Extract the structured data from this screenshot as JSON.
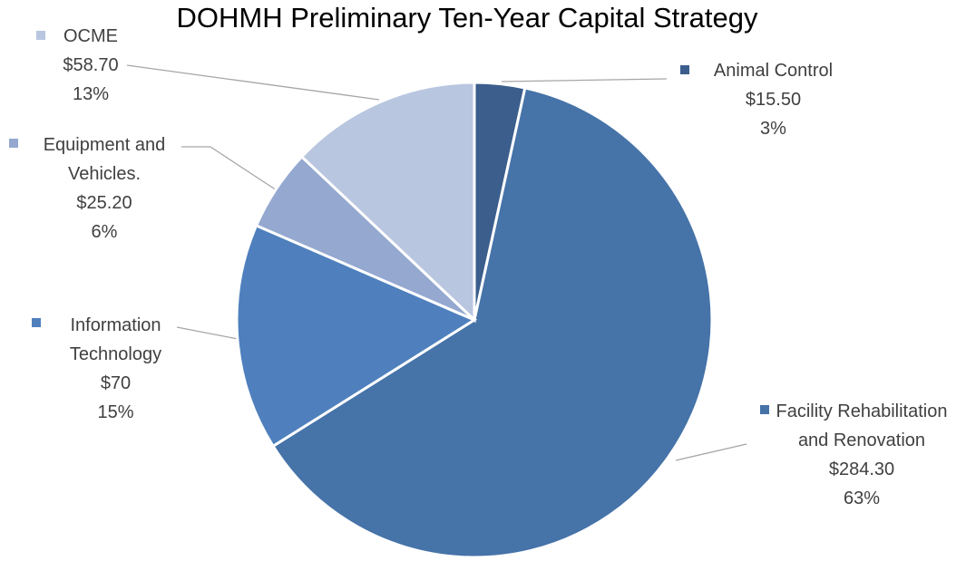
{
  "chart_data": {
    "type": "pie",
    "title": "DOHMH Preliminary Ten-Year Capital Strategy",
    "categories": [
      "Animal Control",
      "Facility Rehabilitation and Renovation",
      "Information Technology",
      "Equipment and Vehicles.",
      "OCME"
    ],
    "values": [
      15.5,
      284.3,
      70,
      25.2,
      58.7
    ],
    "value_labels": [
      "$15.50",
      "$284.30",
      "$70",
      "$25.20",
      "$58.70"
    ],
    "percents": [
      3,
      63,
      15,
      6,
      13
    ],
    "percent_labels": [
      "3%",
      "63%",
      "15%",
      "6%",
      "13%"
    ],
    "colors": [
      "#3b5e8c",
      "#4673a8",
      "#4f80bd",
      "#94a8d0",
      "#b9c6e0"
    ]
  }
}
